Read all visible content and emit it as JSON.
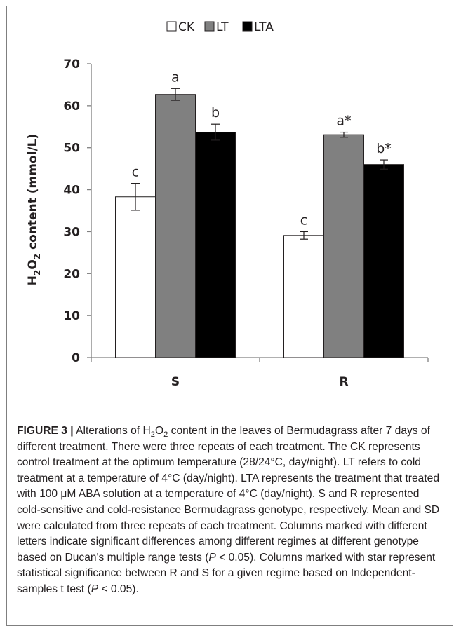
{
  "chart_data": {
    "type": "bar",
    "categories": [
      "S",
      "R"
    ],
    "series": [
      {
        "name": "CK",
        "color": "#ffffff",
        "values": [
          38.3,
          29.1
        ],
        "errors": [
          3.2,
          0.9
        ],
        "labels": [
          "c",
          "c"
        ]
      },
      {
        "name": "LT",
        "color": "#808080",
        "values": [
          62.7,
          53.1
        ],
        "errors": [
          1.4,
          0.6
        ],
        "labels": [
          "a",
          "a*"
        ]
      },
      {
        "name": "LTA",
        "color": "#000000",
        "values": [
          53.7,
          46.0
        ],
        "errors": [
          1.9,
          1.1
        ],
        "labels": [
          "b",
          "b*"
        ]
      }
    ],
    "ylabel_parts": {
      "h": "H",
      "sub2": "2",
      "o": "O",
      "sub2b": "2",
      "rest": " content (mmol/L)"
    },
    "ylim": [
      0,
      70
    ],
    "yticks": [
      0,
      10,
      20,
      30,
      40,
      50,
      60,
      70
    ],
    "legend_position": "top-center",
    "grid": false
  },
  "caption": {
    "label": "FIGURE 3 |",
    "t1": " Alterations of H",
    "s1": "2",
    "t2": "O",
    "s2": "2",
    "t3": " content in the leaves of Bermudagrass after 7 days of different treatment. There were three repeats of each treatment. The CK represents control treatment at the optimum temperature (28/24°C, day/night). LT refers to cold treatment at a temperature of 4°C (day/night). LTA represents the treatment that treated with 100 μM ABA solution at a temperature of 4°C (day/night). S and R represented cold-sensitive and cold-resistance Bermudagrass genotype, respectively. Mean and SD were calculated from three repeats of each treatment. Columns marked with different letters indicate significant differences among different regimes at different genotype based on Ducan's multiple range tests (",
    "p1": "P",
    "t4": " < 0.05). Columns marked with star represent statistical significance between R and S for a given regime based on Independent-samples t test (",
    "p2": "P",
    "t5": " < 0.05)."
  }
}
